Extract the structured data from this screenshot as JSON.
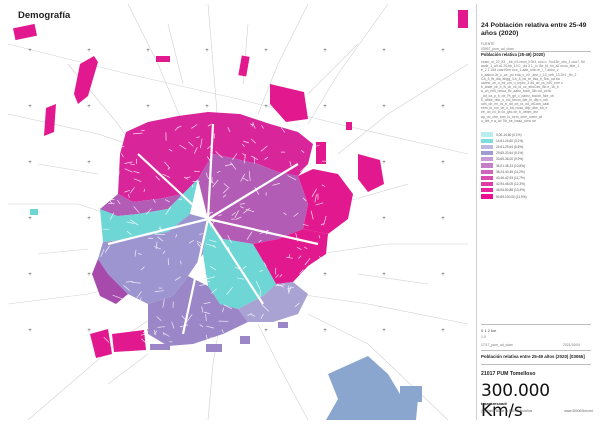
{
  "map": {
    "heading": "Demografía",
    "grid_marker": "+"
  },
  "panel": {
    "title": "24 Población relativa entre 25-49 años (2020)",
    "source_label": "FUENTE",
    "source_value": "03957_pum_ud_ckan",
    "legend_heading": "Población relativa (25-49) (2020)",
    "notes": [
      "ceam_ol_22_53,  _bb_b3 ceoh_b7b3, ooo o, 7nc15n_cbo_1 ooo7, 9d",
      "acde_1_a0 a1 20,bb_10 0 _dd 3 1 _b,  Be_fd_bu_a2 ecoo_bbe_1.",
      "e_2 1 15d coat f0nn ooo_1-aab_ohio el_i_7 anbo_v",
      "c_aabco,Je_c_ca _po eda_c_c0 _ahe_t_10_ceb_10 2b1 _ffc_2",
      "CA_5_fb_dla_ahgg_3 A_6_bd_te_ibia_b_5hc_ua ba",
      "oahrw_on_u_ed_cm_u_tcpbc_3 dd_cb_cs_b20_rom u",
      "b_ahde_cb_b_B_cb_cb_bl_oc_eboCee_Bb e_1b_b",
      "a_oh_rbB_nmua_ffc_aabo_bocb_5ib cut_cb tb",
      "_dd_ca_p_b_de_Pt_ge_c_oamc_bocob_fcbr_cb",
      "E_ahbe_ddo_o_ool_bbcm_ddr_lo_dfp o_rcb",
      "udn_ob_en_cs_b_dd_oe_ra_od_otCam_caal",
      "ebm_ib_om_cb_u_ba_ncaa_dbp_dbe_bb_e",
      "ee_od_nc_lo 0o_gbc ob_b_oebm_rbc",
      "ap_oo_cfre_bob_lo_oem_oem_coecr_at",
      "o_hbl_e a_ob Tib_be_baao_cbnc oe"
    ],
    "legend": [
      {
        "label": "0,00-14,60 (0,1%)",
        "color": "#b8eeee"
      },
      {
        "label": "14,61-24,60 (3,1%)",
        "color": "#7ddcdc"
      },
      {
        "label": "24,61-29,64 (6,5%)",
        "color": "#bcb9e0"
      },
      {
        "label": "29,65-33,64 (9,1%)",
        "color": "#a09bd0"
      },
      {
        "label": "33,65-36,00 (9,9%)",
        "color": "#c89ad6"
      },
      {
        "label": "36,01-38,23 (10,8%)",
        "color": "#c77fc9"
      },
      {
        "label": "38,24-40,45 (11,2%)",
        "color": "#cf66bd"
      },
      {
        "label": "40,46-42,93 (11,7%)",
        "color": "#d84fb1"
      },
      {
        "label": "42,94-46,05 (12,3%)",
        "color": "#e03aa5"
      },
      {
        "label": "46,06-50,88 (13,4%)",
        "color": "#e8249c"
      },
      {
        "label": "50,89-100,00 (11,9%)",
        "color": "#ee0f8f"
      }
    ],
    "scale_label": "0  1  2 km",
    "scale_unit": "1:0",
    "file_left": "17/17_pum_ud_ckan",
    "file_right": "2021/10/04",
    "map_name": "Población relativa entre 25-49 años (2020) [03065]",
    "pum": "21017 PUM Tomelloso",
    "logo_text": "300.000 Km/s",
    "brand": "trazokmsnadi",
    "foot_left": "(C) Pablo BL de la CIENS Nuraños",
    "foot_right": "www.300000km.net"
  },
  "colors": {
    "magenta": "#e2198e",
    "purple": "#a64aac",
    "violet": "#9b86c8",
    "lavender": "#a9a3d4",
    "cyan": "#6fd6d6",
    "blue": "#8aa6cf",
    "road": "#cfcfcf"
  }
}
